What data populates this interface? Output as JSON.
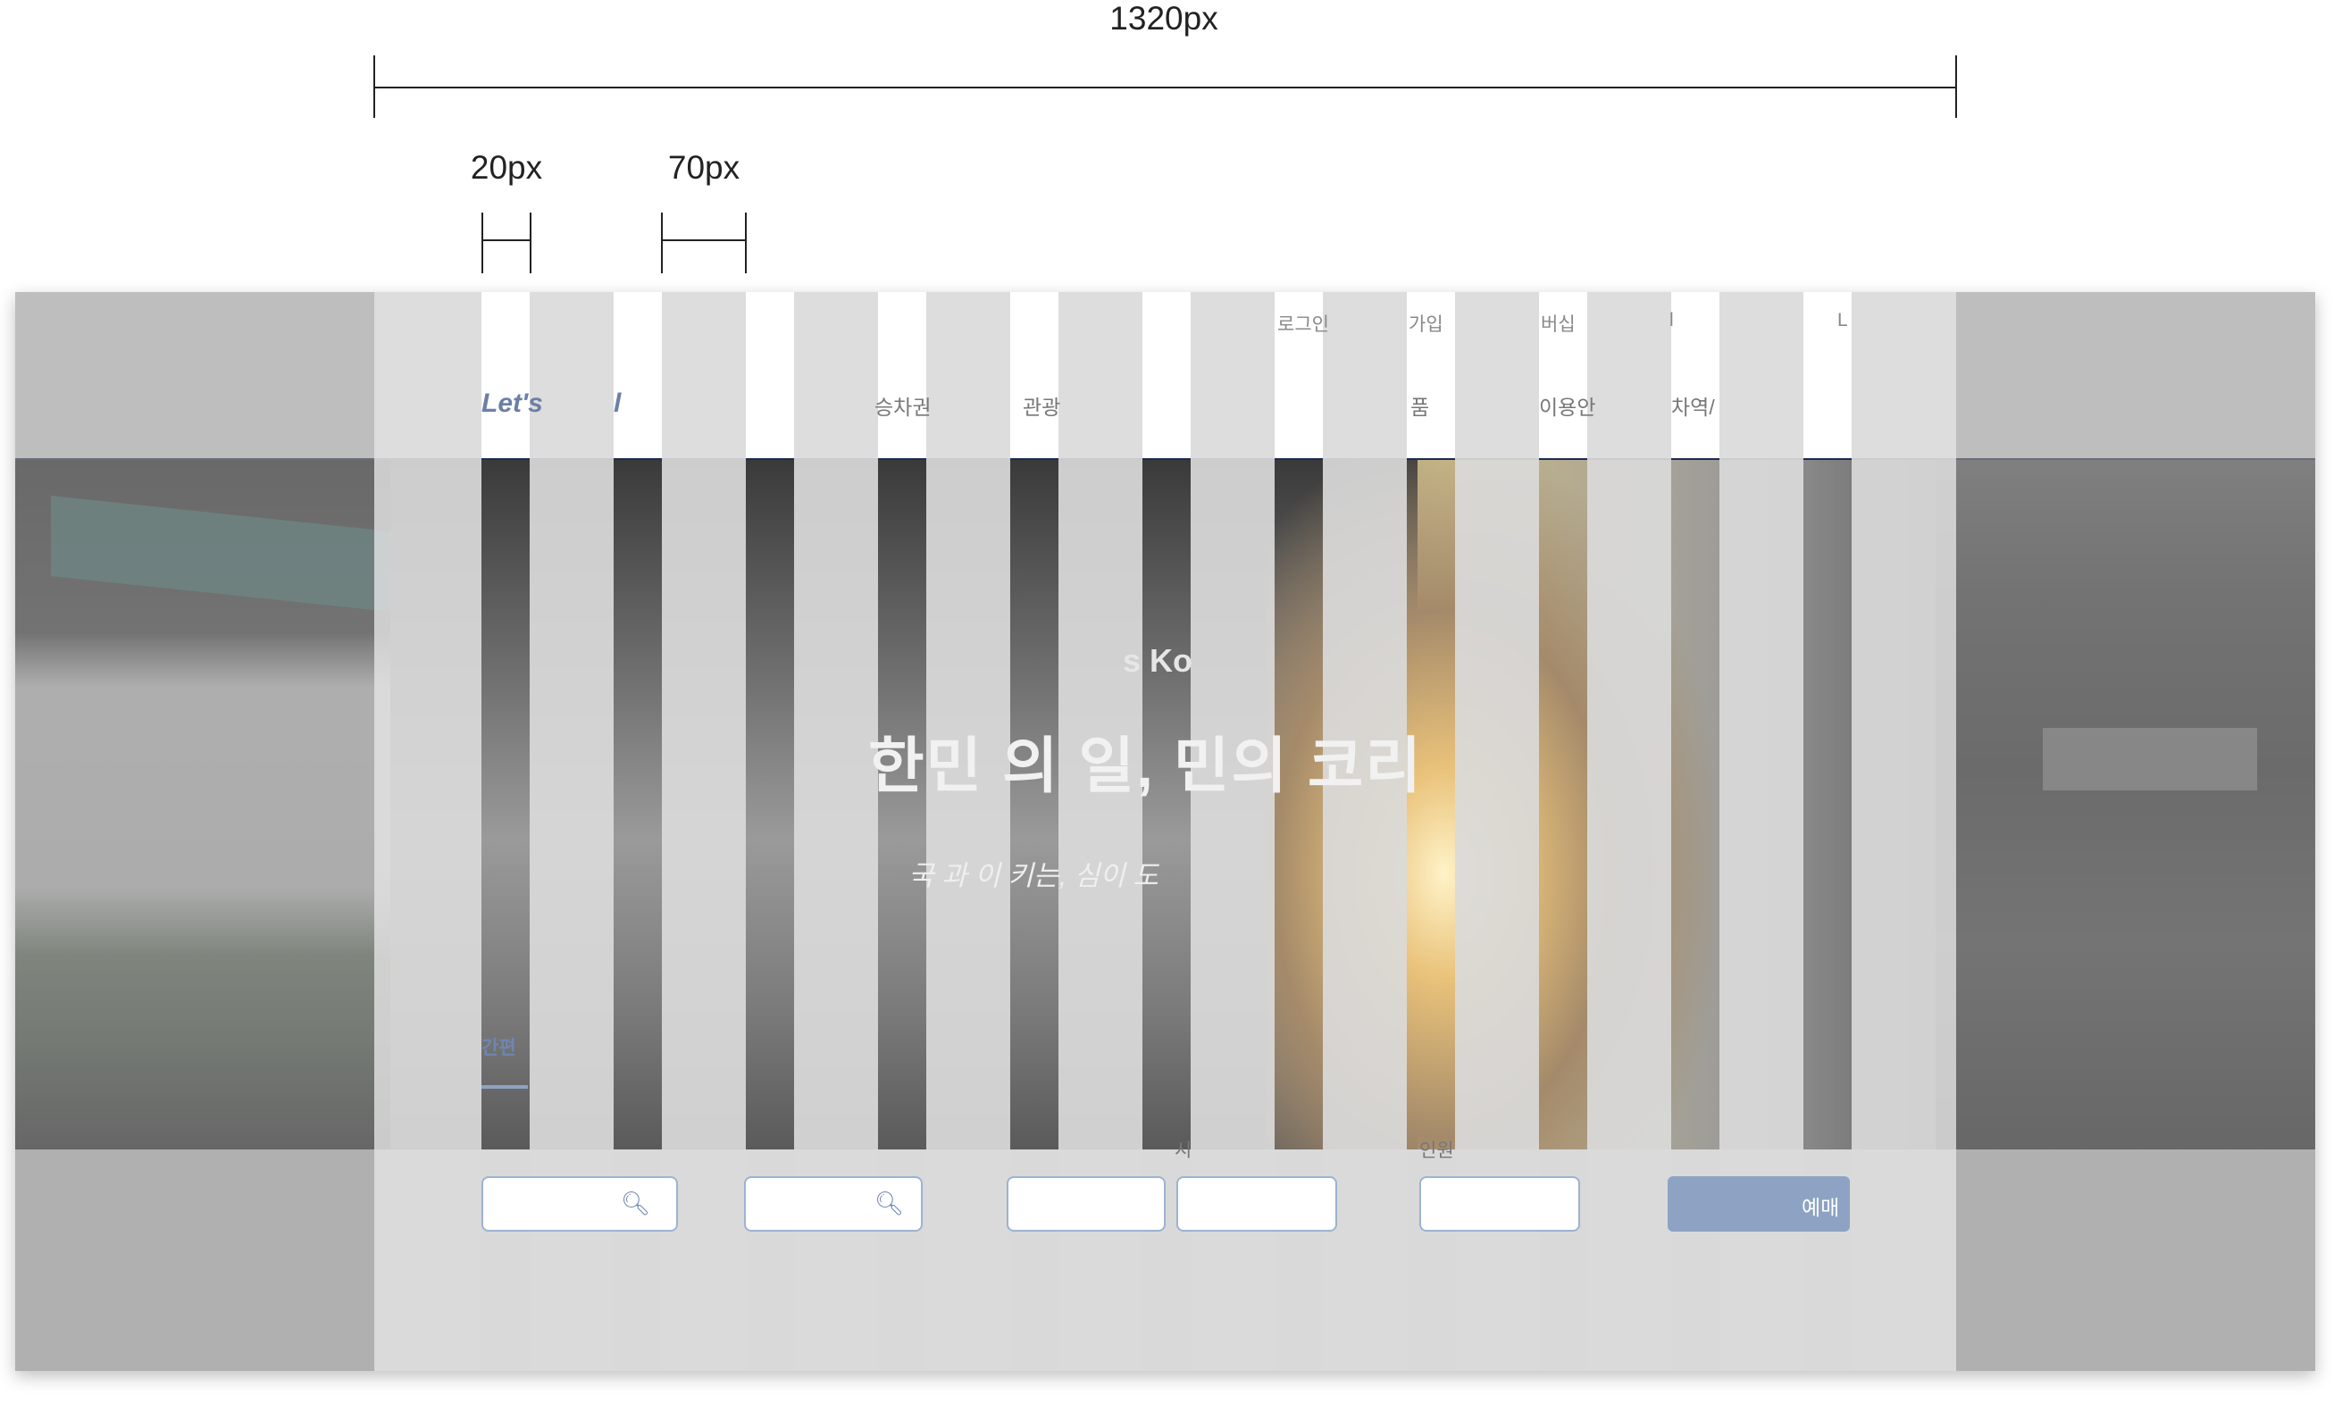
{
  "dimensions": {
    "container_width_label": "1320px",
    "gutter_label": "20px",
    "column_label": "70px"
  },
  "header": {
    "logo_text": "Let's",
    "logo_suffix": "l",
    "utility_links": [
      "로그인",
      "가입",
      "버십",
      "l",
      "L"
    ],
    "gnb_items": [
      "승차권",
      "관광",
      "품",
      "이용안",
      "차역/"
    ]
  },
  "hero": {
    "eyebrow": "s Ko",
    "title": "한민  의   일,   민의  코리",
    "subtitle": "국        과  이    키는,        심이       도"
  },
  "booking": {
    "tab_label": "간편",
    "label_time": "시",
    "label_people": "인원",
    "buy_button": "예매"
  },
  "colors": {
    "accent": "#8ea3c4",
    "header_line": "#1d2a55",
    "field_border": "#9db2d2",
    "guide_gray": "#d9d9d9"
  }
}
